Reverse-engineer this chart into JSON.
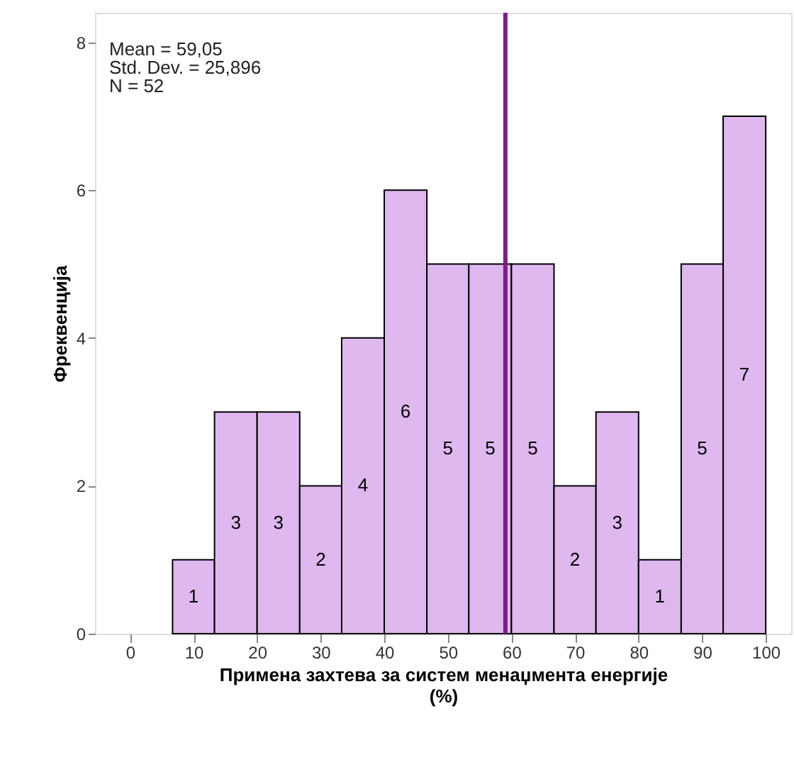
{
  "chart_data": {
    "type": "histogram",
    "xlabel": "Примена захтева за систем менаџмента енергије\n(%)",
    "ylabel": "Фреквенција",
    "bins": [
      6.7,
      13.3,
      20,
      26.7,
      33.3,
      40,
      46.7,
      53.3,
      60,
      66.7,
      73.3,
      80,
      86.7,
      93.3,
      100
    ],
    "values": [
      1,
      3,
      3,
      2,
      4,
      6,
      5,
      5,
      5,
      2,
      3,
      1,
      5,
      7
    ],
    "color": "#dfb8f0",
    "data_labels": true,
    "xlim": [
      -5.5,
      104
    ],
    "xticks": [
      0,
      10,
      20,
      30,
      40,
      50,
      60,
      70,
      80,
      90,
      100
    ],
    "ylim": [
      0,
      8.4
    ],
    "yticks": [
      0,
      2,
      4,
      6,
      8
    ],
    "grid": false,
    "ref_lines": [
      {
        "axis": "x",
        "value": 59.05,
        "color": "#7b1f7f"
      }
    ],
    "annotations": [
      "Mean = 59,05\nStd. Dev. = 25,896\nN = 52"
    ]
  }
}
